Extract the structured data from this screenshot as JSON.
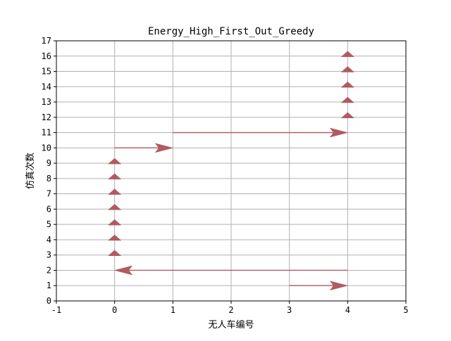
{
  "chart_data": {
    "type": "quiver",
    "title": "Energy_High_First_Out_Greedy",
    "xlabel": "无人车编号",
    "ylabel": "仿真次数",
    "xlim": [
      -1,
      5
    ],
    "ylim": [
      0,
      17
    ],
    "xticks": [
      -1,
      0,
      1,
      2,
      3,
      4,
      5
    ],
    "yticks": [
      0,
      1,
      2,
      3,
      4,
      5,
      6,
      7,
      8,
      9,
      10,
      11,
      12,
      13,
      14,
      15,
      16,
      17
    ],
    "grid": true,
    "arrow_color": "#b05a62",
    "grid_color": "#b0b0b0",
    "arrows": [
      {
        "x0": 3,
        "y0": 1,
        "x1": 4,
        "y1": 1
      },
      {
        "x0": 4,
        "y0": 2,
        "x1": 0,
        "y1": 2
      },
      {
        "x0": 0,
        "y0": 3,
        "x1": 0,
        "y1": 3
      },
      {
        "x0": 0,
        "y0": 4,
        "x1": 0,
        "y1": 4
      },
      {
        "x0": 0,
        "y0": 5,
        "x1": 0,
        "y1": 5
      },
      {
        "x0": 0,
        "y0": 6,
        "x1": 0,
        "y1": 6
      },
      {
        "x0": 0,
        "y0": 7,
        "x1": 0,
        "y1": 7
      },
      {
        "x0": 0,
        "y0": 8,
        "x1": 0,
        "y1": 8
      },
      {
        "x0": 0,
        "y0": 9,
        "x1": 0,
        "y1": 9
      },
      {
        "x0": 0,
        "y0": 10,
        "x1": 1,
        "y1": 10
      },
      {
        "x0": 1,
        "y0": 11,
        "x1": 4,
        "y1": 11
      },
      {
        "x0": 4,
        "y0": 12,
        "x1": 4,
        "y1": 12
      },
      {
        "x0": 4,
        "y0": 13,
        "x1": 4,
        "y1": 13
      },
      {
        "x0": 4,
        "y0": 14,
        "x1": 4,
        "y1": 14
      },
      {
        "x0": 4,
        "y0": 15,
        "x1": 4,
        "y1": 15
      },
      {
        "x0": 4,
        "y0": 16,
        "x1": 4,
        "y1": 16
      }
    ]
  }
}
